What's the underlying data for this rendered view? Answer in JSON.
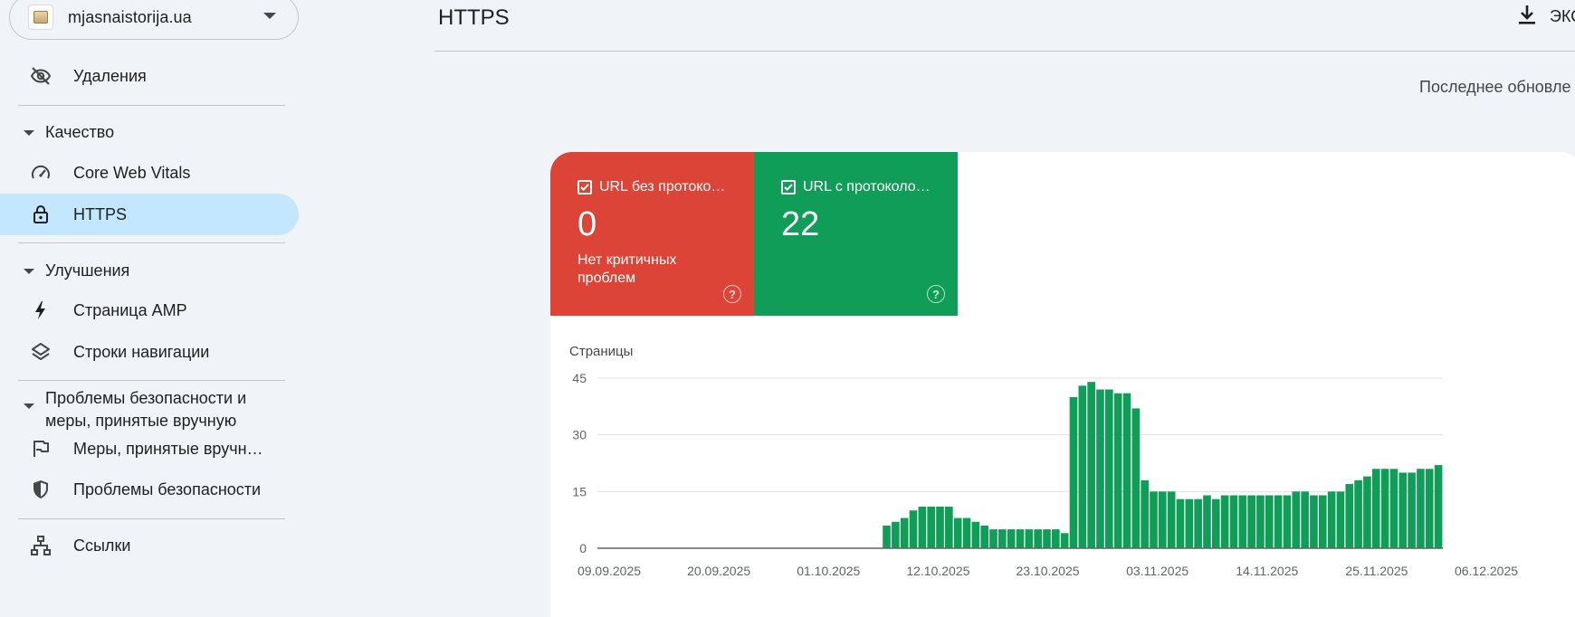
{
  "property": {
    "name": "mjasnaistorija.ua"
  },
  "sidebar": {
    "removals": {
      "label": "Удаления",
      "icon": "eye-off-icon"
    },
    "quality": {
      "label": "Качество"
    },
    "core_web_vitals": {
      "label": "Core Web Vitals",
      "icon": "speed-gauge-icon"
    },
    "https": {
      "label": "HTTPS",
      "icon": "lock-icon"
    },
    "enhancements": {
      "label": "Улучшения"
    },
    "amp": {
      "label": "Страница AMP",
      "icon": "lightning-icon"
    },
    "breadcrumbs": {
      "label": "Строки навигации",
      "icon": "layers-icon"
    },
    "security": {
      "label": "Проблемы безопасности и меры, принятые вручную"
    },
    "manual_actions": {
      "label": "Меры, принятые вручн…",
      "icon": "flag-icon"
    },
    "security_issues": {
      "label": "Проблемы безопасности",
      "icon": "shield-icon"
    },
    "links": {
      "label": "Ссылки",
      "icon": "sitemap-icon"
    }
  },
  "header": {
    "title": "HTTPS",
    "export_label": "ЭКС",
    "last_update": "Последнее обновле"
  },
  "tiles": [
    {
      "label": "URL без протоко…",
      "value": "0",
      "sub": "Нет критичных проблем",
      "color": "#db4437",
      "help": "?"
    },
    {
      "label": "URL с протоколо…",
      "value": "22",
      "sub": "",
      "color": "#0f9d58",
      "help": "?"
    }
  ],
  "chart_data": {
    "type": "bar",
    "ylabel": "Страницы",
    "ylim": [
      0,
      45
    ],
    "yticks": [
      0,
      15,
      30,
      45
    ],
    "x_start": "09.09.2025",
    "x_end": "06.12.2025",
    "xtick_labels": [
      "09.09.2025",
      "20.09.2025",
      "01.10.2025",
      "12.10.2025",
      "23.10.2025",
      "03.11.2025",
      "14.11.2025",
      "25.11.2025",
      "06.12.2025"
    ],
    "color": "#0f9d58",
    "grid": true,
    "series": [
      {
        "values": [
          0,
          0,
          0,
          0,
          0,
          0,
          0,
          0,
          0,
          0,
          0,
          0,
          0,
          0,
          0,
          0,
          0,
          0,
          0,
          0,
          0,
          0,
          0,
          0,
          0,
          0,
          0,
          0,
          0,
          0,
          0,
          0,
          6,
          7,
          8,
          10,
          11,
          11,
          11,
          11,
          8,
          8,
          7,
          6,
          5,
          5,
          5,
          5,
          5,
          5,
          5,
          5,
          4,
          40,
          43,
          44,
          42,
          42,
          41,
          41,
          37,
          18,
          15,
          15,
          15,
          13,
          13,
          13,
          14,
          13,
          14,
          14,
          14,
          14,
          14,
          14,
          14,
          14,
          15,
          15,
          14,
          14,
          15,
          15,
          17,
          18,
          19,
          21,
          21,
          21,
          20,
          20,
          21,
          21,
          22
        ]
      }
    ]
  }
}
